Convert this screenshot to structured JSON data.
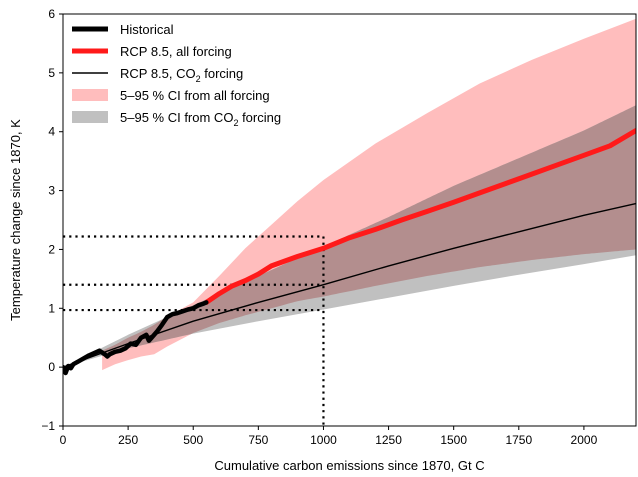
{
  "chart_data": {
    "type": "line",
    "xlabel": "Cumulative carbon emissions since 1870, Gt C",
    "ylabel": "Temperature change since 1870, K",
    "xlim": [
      0,
      2200
    ],
    "ylim": [
      -1,
      6
    ],
    "xticks": [
      0,
      250,
      500,
      750,
      1000,
      1250,
      1500,
      1750,
      2000
    ],
    "yticks": [
      -1,
      0,
      1,
      2,
      3,
      4,
      5,
      6
    ],
    "legend_position": "top-left",
    "grid": false,
    "legend": [
      {
        "label": "Historical",
        "kind": "line",
        "color": "#000000"
      },
      {
        "label": "RCP 8.5, all forcing",
        "kind": "line",
        "color": "#ff1a1a"
      },
      {
        "label_parts": [
          "RCP 8.5, CO",
          "2",
          " forcing"
        ],
        "kind": "thinline",
        "color": "#000000"
      },
      {
        "label": "5–95 % CI from all forcing",
        "kind": "patch",
        "color": "#ffbdbd"
      },
      {
        "label_parts": [
          "5–95 % CI from CO",
          "2",
          " forcing"
        ],
        "kind": "patch",
        "color": "#c0c0c0"
      }
    ],
    "series": [
      {
        "name": "Historical",
        "color": "#000000",
        "x": [
          0,
          10,
          20,
          30,
          40,
          60,
          80,
          100,
          120,
          140,
          160,
          170,
          180,
          200,
          220,
          240,
          260,
          280,
          300,
          320,
          330,
          340,
          360,
          380,
          400,
          420,
          440,
          460,
          480,
          500,
          520,
          540,
          550
        ],
        "y": [
          0.0,
          -0.1,
          0.02,
          -0.02,
          0.05,
          0.1,
          0.15,
          0.2,
          0.24,
          0.28,
          0.22,
          0.18,
          0.22,
          0.26,
          0.28,
          0.32,
          0.4,
          0.38,
          0.5,
          0.55,
          0.45,
          0.5,
          0.6,
          0.72,
          0.85,
          0.9,
          0.92,
          0.95,
          0.98,
          1.0,
          1.05,
          1.08,
          1.1
        ]
      },
      {
        "name": "RCP 8.5, all forcing",
        "color": "#ff1a1a",
        "x": [
          550,
          600,
          650,
          700,
          750,
          800,
          900,
          1000,
          1100,
          1200,
          1300,
          1400,
          1500,
          1600,
          1700,
          1800,
          1900,
          2000,
          2100,
          2200
        ],
        "y": [
          1.1,
          1.25,
          1.38,
          1.47,
          1.58,
          1.72,
          1.88,
          2.02,
          2.2,
          2.34,
          2.5,
          2.65,
          2.8,
          2.96,
          3.12,
          3.28,
          3.44,
          3.6,
          3.76,
          4.02
        ]
      },
      {
        "name": "RCP 8.5, CO2 forcing",
        "color": "#000000",
        "x": [
          0,
          250,
          500,
          750,
          1000,
          1250,
          1500,
          1750,
          2000,
          2200
        ],
        "y": [
          0.0,
          0.4,
          0.78,
          1.1,
          1.4,
          1.72,
          2.02,
          2.3,
          2.58,
          2.78
        ]
      }
    ],
    "bands": [
      {
        "name": "5–95 % CI from all forcing",
        "color": "#ffbdbd",
        "x": [
          150,
          200,
          250,
          300,
          350,
          400,
          500,
          600,
          700,
          800,
          900,
          1000,
          1200,
          1400,
          1600,
          1800,
          2000,
          2200
        ],
        "upper": [
          0.28,
          0.38,
          0.5,
          0.6,
          0.72,
          0.86,
          1.1,
          1.55,
          2.02,
          2.42,
          2.82,
          3.18,
          3.8,
          4.32,
          4.82,
          5.22,
          5.58,
          5.92
        ],
        "lower": [
          -0.05,
          0.05,
          0.12,
          0.18,
          0.22,
          0.35,
          0.58,
          0.75,
          0.88,
          1.0,
          1.12,
          1.2,
          1.38,
          1.55,
          1.7,
          1.82,
          1.92,
          2.0
        ]
      },
      {
        "name": "5–95 % CI from CO2 forcing",
        "color": "#c0c0c0",
        "x": [
          0,
          250,
          500,
          750,
          1000,
          1250,
          1500,
          1750,
          2000,
          2200
        ],
        "upper": [
          0.0,
          0.55,
          1.05,
          1.55,
          2.05,
          2.55,
          3.08,
          3.55,
          4.02,
          4.45
        ],
        "lower": [
          0.0,
          0.32,
          0.57,
          0.78,
          0.98,
          1.18,
          1.38,
          1.57,
          1.75,
          1.9
        ]
      }
    ],
    "annotations": {
      "dotted_guides": {
        "vertical_x": 1000,
        "horizontal_y": [
          2.22,
          1.4,
          0.97
        ]
      }
    }
  }
}
